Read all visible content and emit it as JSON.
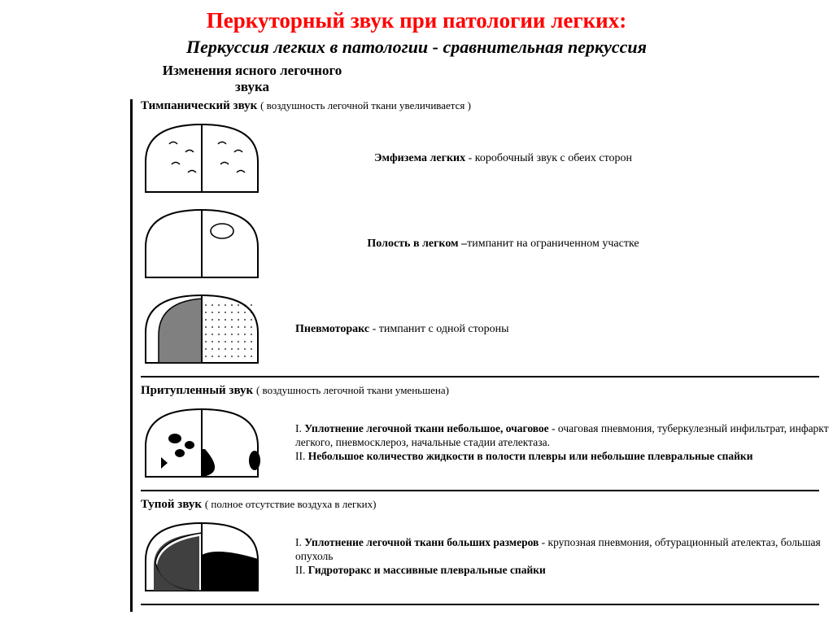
{
  "main_title": "Перкуторный звук при патологии легких:",
  "subtitle": "Перкуссия легких в патологии - сравнительная перкуссия",
  "section_header": "Изменения ясного легочного звука",
  "colors": {
    "title": "#ff0000",
    "text": "#000000",
    "stroke": "#000000",
    "fill_white": "#ffffff",
    "fill_gray": "#808080",
    "fill_darkgray": "#404040",
    "fill_black": "#000000"
  },
  "lung_diagram": {
    "width": 150,
    "height": 95,
    "stroke_width": 2
  },
  "sections": [
    {
      "header_bold": "Тимпанический звук",
      "header_paren": "( воздушность легочной ткани увеличивается )",
      "rows": [
        {
          "diagram_type": "emphysema",
          "text_bold": "Эмфизема легких",
          "text_plain": " - коробочный звук с обеих сторон",
          "center": true
        },
        {
          "diagram_type": "cavity",
          "text_bold": "Полость в легком –",
          "text_plain": "тимпанит на ограниченном участке",
          "center": true
        },
        {
          "diagram_type": "pneumothorax",
          "text_bold": "Пневмоторакс",
          "text_plain": " - тимпанит с одной стороны",
          "center": false
        }
      ]
    },
    {
      "header_bold": "Притупленный звук",
      "header_paren": "( воздушность легочной ткани уменьшена)",
      "rows": [
        {
          "diagram_type": "dull",
          "multi": [
            {
              "prefix": "I. ",
              "bold": "Уплотнение легочной ткани небольшое, очаговое",
              "plain": " - очаговая пневмония, туберкулезный инфильтрат, инфаркт легкого, пневмосклероз, начальные стадии ателектаза."
            },
            {
              "prefix": "II. ",
              "bold": "Небольшое количество жидкости в полости плевры или небольшие плевральные спайки",
              "plain": ""
            }
          ]
        }
      ]
    },
    {
      "header_bold": "Тупой звук",
      "header_paren": "( полное отсутствие воздуха в легких)",
      "rows": [
        {
          "diagram_type": "flat",
          "multi": [
            {
              "prefix": "I. ",
              "bold": "Уплотнение легочной ткани больших размеров",
              "plain": " - крупозная пневмония, обтурационный ателектаз, большая опухоль"
            },
            {
              "prefix": "II. ",
              "bold": "Гидроторакс и массивные плевральные спайки",
              "plain": ""
            }
          ]
        }
      ]
    }
  ]
}
